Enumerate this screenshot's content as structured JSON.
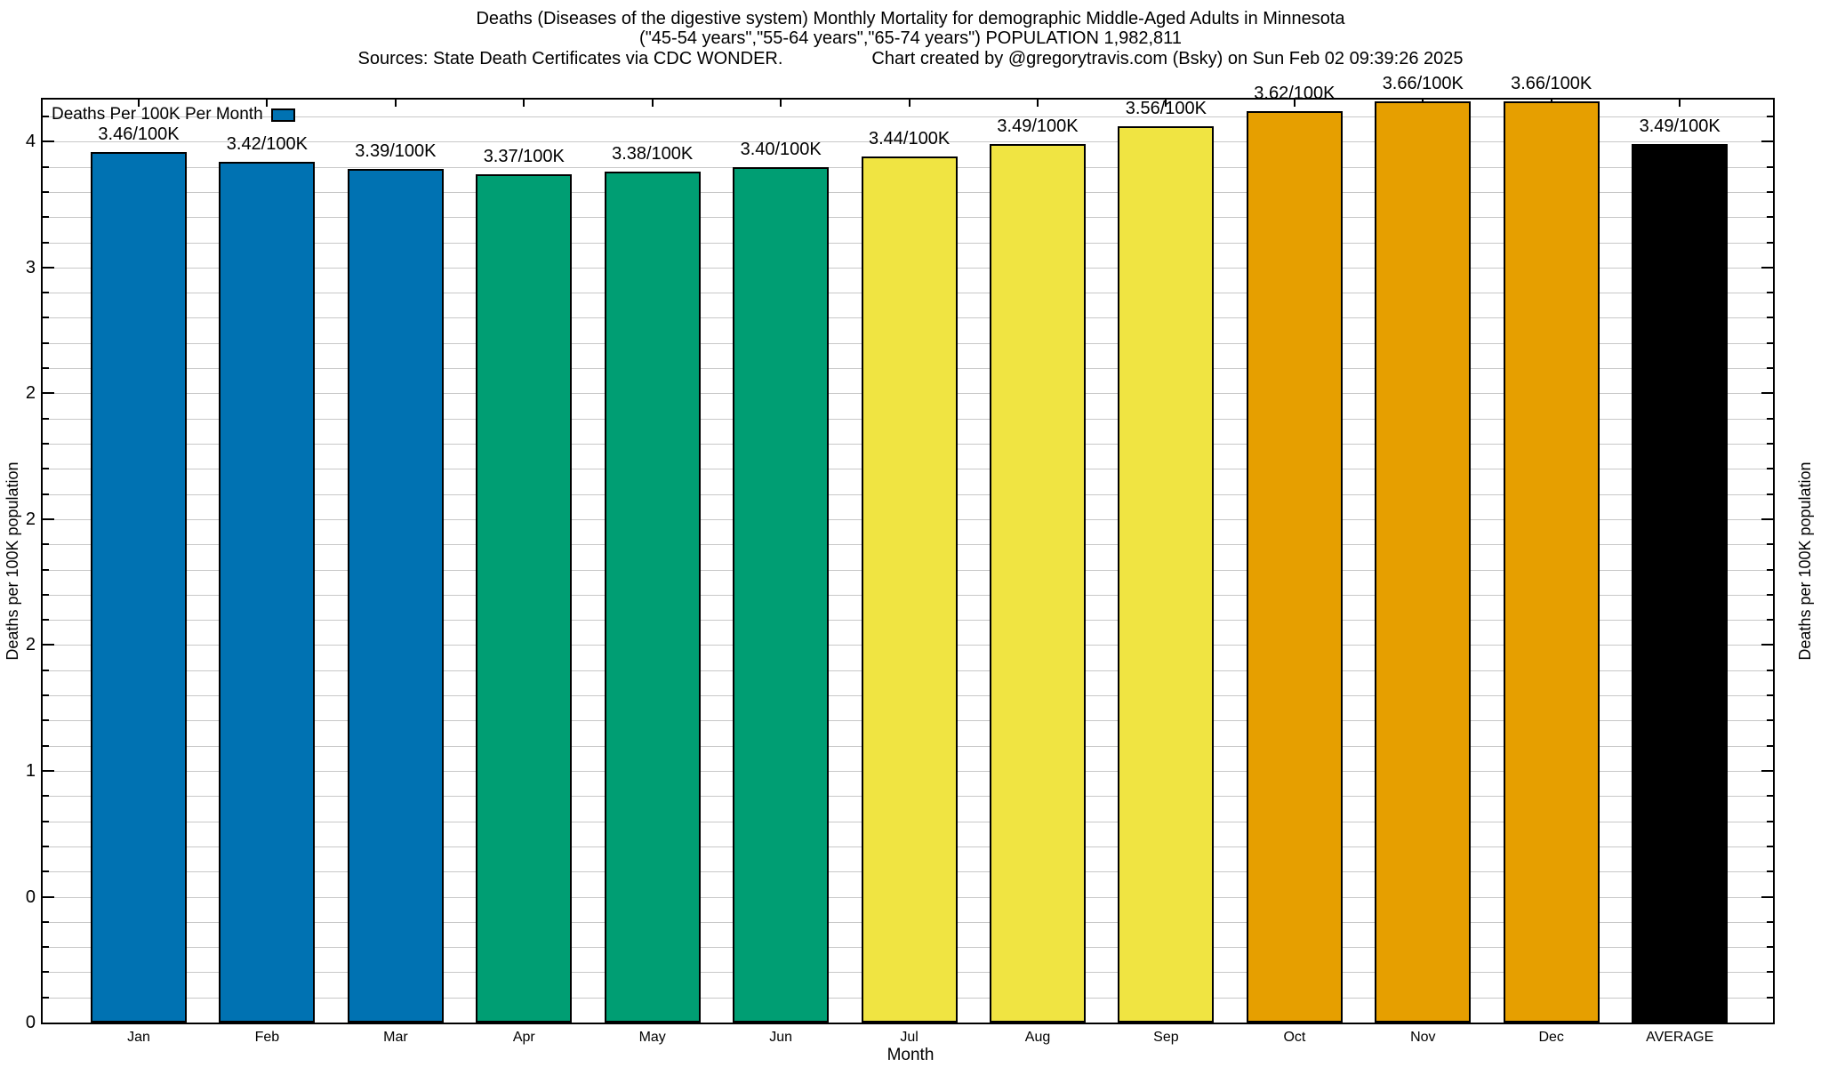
{
  "page": {
    "title_line1": "Deaths (Diseases of the digestive system) Monthly Mortality for demographic Middle-Aged Adults in Minnesota",
    "title_line2": "(\"45-54 years\",\"55-64 years\",\"65-74 years\") POPULATION 1,982,811",
    "sources": "Sources: State Death Certificates via CDC WONDER.",
    "credit": "Chart created by @gregorytravis.com (Bsky) on Sun Feb 02 09:39:26 2025"
  },
  "chart_data": {
    "type": "bar",
    "title": "Deaths (Diseases of the digestive system) Monthly Mortality for demographic Middle-Aged Adults in Minnesota",
    "subtitle": "(\"45-54 years\",\"55-64 years\",\"65-74 years\") POPULATION 1,982,811",
    "categories": [
      "Jan",
      "Feb",
      "Mar",
      "Apr",
      "May",
      "Jun",
      "Jul",
      "Aug",
      "Sep",
      "Oct",
      "Nov",
      "Dec",
      "AVERAGE"
    ],
    "values": [
      3.46,
      3.42,
      3.39,
      3.37,
      3.38,
      3.4,
      3.44,
      3.49,
      3.56,
      3.62,
      3.66,
      3.66,
      3.49
    ],
    "bar_labels": [
      "3.46/100K",
      "3.42/100K",
      "3.39/100K",
      "3.37/100K",
      "3.38/100K",
      "3.40/100K",
      "3.44/100K",
      "3.49/100K",
      "3.56/100K",
      "3.62/100K",
      "3.66/100K",
      "3.66/100K",
      "3.49/100K"
    ],
    "bar_colors": [
      "#0072B2",
      "#0072B2",
      "#0072B2",
      "#009E73",
      "#009E73",
      "#009E73",
      "#F0E442",
      "#F0E442",
      "#F0E442",
      "#E69F00",
      "#E69F00",
      "#E69F00",
      "#000000"
    ],
    "legend": {
      "label": "Deaths Per 100K Per Month",
      "swatch_color": "#0072B2",
      "position": "top-left-inside"
    },
    "xlabel": "Month",
    "ylabel_left": "Deaths per 100K population",
    "ylabel_right": "Deaths per 100K population",
    "ylim": [
      0,
      3.667
    ],
    "y_minor_tick_interval": 0.1,
    "y_major_tick_interval": 0.5,
    "y_ticks": [
      {
        "v": 0.0,
        "label": "0"
      },
      {
        "v": 0.5,
        "label": "0"
      },
      {
        "v": 1.0,
        "label": "1"
      },
      {
        "v": 1.5,
        "label": "2"
      },
      {
        "v": 2.0,
        "label": "2"
      },
      {
        "v": 2.5,
        "label": "2"
      },
      {
        "v": 3.0,
        "label": "3"
      },
      {
        "v": 3.5,
        "label": "4"
      }
    ],
    "grid": true,
    "colors": {
      "grid": "#c8c8c8",
      "axis": "#000000",
      "blue": "#0072B2",
      "green": "#009E73",
      "yellow": "#F0E442",
      "orange": "#E69F00",
      "average": "#000000"
    }
  }
}
